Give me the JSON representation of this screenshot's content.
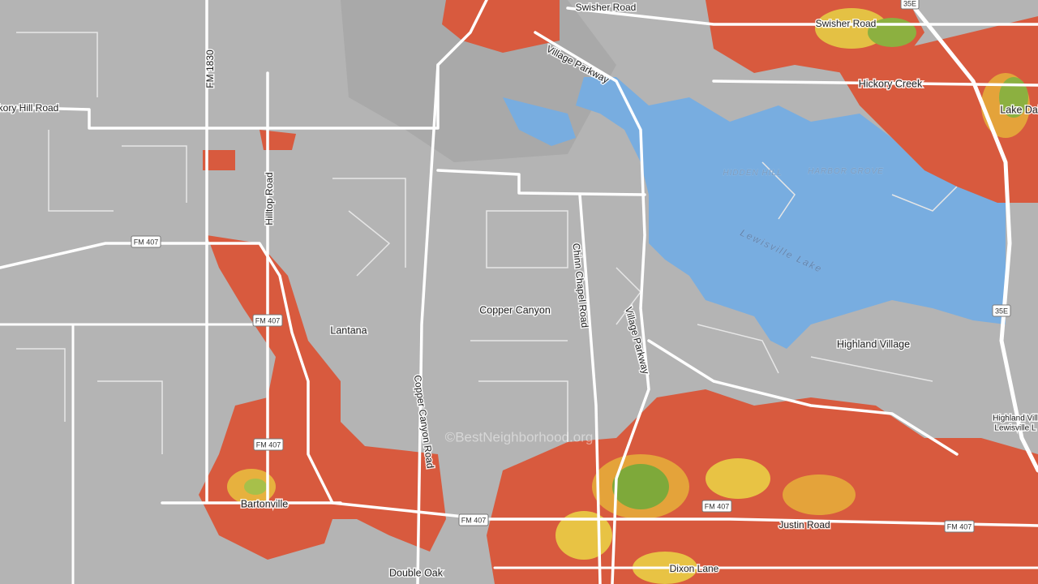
{
  "map": {
    "labels": [
      "Swisher Road",
      "Swisher Road",
      "Village Parkway",
      "Hickory Creek",
      "Lake Dal",
      "kory Hill Road",
      "FM 1830",
      "Hilltop Road",
      "HIDDEN HILL",
      "HARBOR GROVE",
      "Lewisville Lake",
      "Chinn Chapel Road",
      "Village Parkway",
      "Copper Canyon",
      "Lantana",
      "Highland Village",
      "Copper Canyon Road",
      "Bartonville",
      "Double Oak",
      "Justin Road",
      "Dixon Lane",
      "Highland Vill",
      "Lewisville L"
    ],
    "road_shields": [
      "FM 407",
      "FM 407",
      "FM 407",
      "FM 407",
      "FM 407",
      "FM 407",
      "35E",
      "35E"
    ],
    "watermark": "©BestNeighborhood.org"
  }
}
